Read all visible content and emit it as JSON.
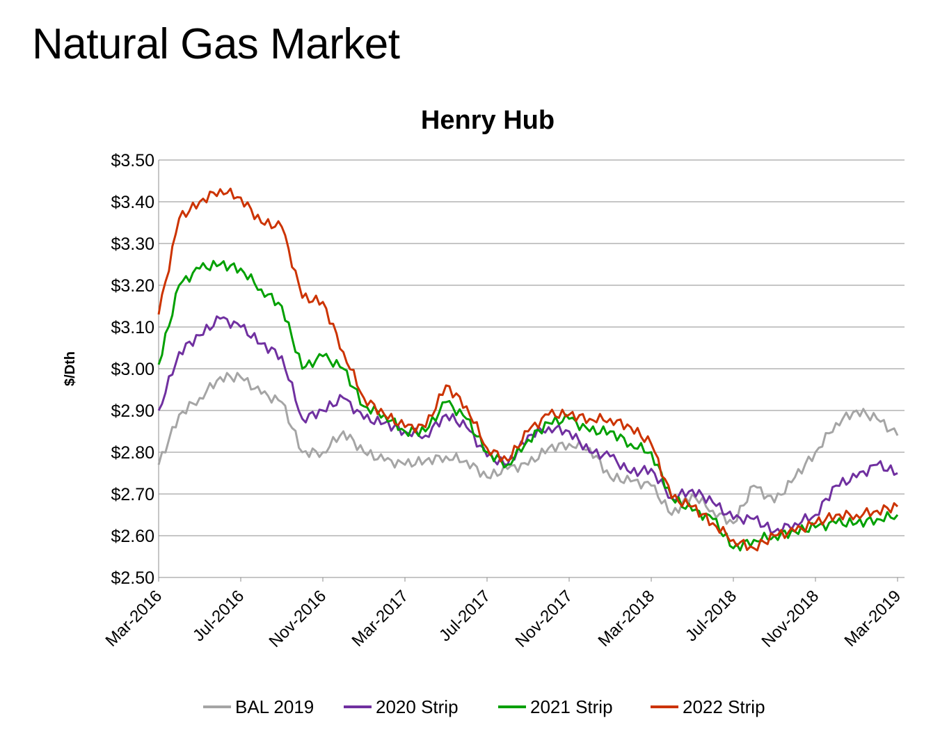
{
  "slide": {
    "title": "Natural Gas Market"
  },
  "chart_data": {
    "type": "line",
    "title": "Henry Hub",
    "xlabel": "",
    "ylabel": "$/Dth",
    "ylim": [
      2.5,
      3.5
    ],
    "ytick_values": [
      2.5,
      2.6,
      2.7,
      2.8,
      2.9,
      3.0,
      3.1,
      3.2,
      3.3,
      3.4,
      3.5
    ],
    "yticks": [
      "$2.50",
      "$2.60",
      "$2.70",
      "$2.80",
      "$2.90",
      "$3.00",
      "$3.10",
      "$3.20",
      "$3.30",
      "$3.40",
      "$3.50"
    ],
    "xticks": [
      "Mar-2016",
      "Jul-2016",
      "Nov-2016",
      "Mar-2017",
      "Jul-2017",
      "Nov-2017",
      "Mar-2018",
      "Jul-2018",
      "Nov-2018",
      "Mar-2019"
    ],
    "x": [
      "Mar-2016",
      "Apr-2016",
      "May-2016",
      "Jun-2016",
      "Jul-2016",
      "Aug-2016",
      "Sep-2016",
      "Oct-2016",
      "Nov-2016",
      "Dec-2016",
      "Jan-2017",
      "Feb-2017",
      "Mar-2017",
      "Apr-2017",
      "May-2017",
      "Jun-2017",
      "Jul-2017",
      "Aug-2017",
      "Sep-2017",
      "Oct-2017",
      "Nov-2017",
      "Dec-2017",
      "Jan-2018",
      "Feb-2018",
      "Mar-2018",
      "Apr-2018",
      "May-2018",
      "Jun-2018",
      "Jul-2018",
      "Aug-2018",
      "Sep-2018",
      "Oct-2018",
      "Nov-2018",
      "Dec-2018",
      "Jan-2019",
      "Feb-2019",
      "Mar-2019"
    ],
    "grid": true,
    "legend_position": "bottom",
    "series": [
      {
        "name": "BAL 2019",
        "color": "#A5A5A5",
        "values": [
          2.77,
          2.89,
          2.93,
          2.98,
          2.98,
          2.94,
          2.92,
          2.8,
          2.8,
          2.85,
          2.8,
          2.78,
          2.77,
          2.78,
          2.79,
          2.78,
          2.74,
          2.76,
          2.77,
          2.81,
          2.82,
          2.81,
          2.74,
          2.73,
          2.72,
          2.65,
          2.7,
          2.66,
          2.63,
          2.72,
          2.68,
          2.74,
          2.8,
          2.87,
          2.9,
          2.88,
          2.84
        ]
      },
      {
        "name": "2020 Strip",
        "color": "#7030A0",
        "values": [
          2.9,
          3.04,
          3.08,
          3.12,
          3.1,
          3.06,
          3.03,
          2.88,
          2.9,
          2.93,
          2.88,
          2.87,
          2.85,
          2.84,
          2.89,
          2.86,
          2.79,
          2.77,
          2.84,
          2.86,
          2.85,
          2.8,
          2.79,
          2.75,
          2.76,
          2.69,
          2.71,
          2.68,
          2.64,
          2.64,
          2.61,
          2.63,
          2.65,
          2.72,
          2.74,
          2.77,
          2.75
        ]
      },
      {
        "name": "2021 Strip",
        "color": "#00A000",
        "values": [
          3.01,
          3.2,
          3.24,
          3.25,
          3.24,
          3.19,
          3.15,
          3.0,
          3.03,
          3.0,
          2.91,
          2.89,
          2.85,
          2.85,
          2.92,
          2.88,
          2.8,
          2.77,
          2.83,
          2.87,
          2.88,
          2.85,
          2.85,
          2.82,
          2.8,
          2.69,
          2.66,
          2.64,
          2.57,
          2.59,
          2.6,
          2.61,
          2.62,
          2.63,
          2.63,
          2.64,
          2.65
        ]
      },
      {
        "name": "2022 Strip",
        "color": "#CC3300",
        "values": [
          3.13,
          3.36,
          3.4,
          3.43,
          3.41,
          3.35,
          3.34,
          3.17,
          3.16,
          3.04,
          2.93,
          2.89,
          2.86,
          2.86,
          2.96,
          2.91,
          2.81,
          2.78,
          2.85,
          2.89,
          2.89,
          2.88,
          2.88,
          2.86,
          2.82,
          2.69,
          2.67,
          2.63,
          2.59,
          2.57,
          2.6,
          2.61,
          2.63,
          2.65,
          2.65,
          2.66,
          2.67
        ]
      }
    ]
  }
}
